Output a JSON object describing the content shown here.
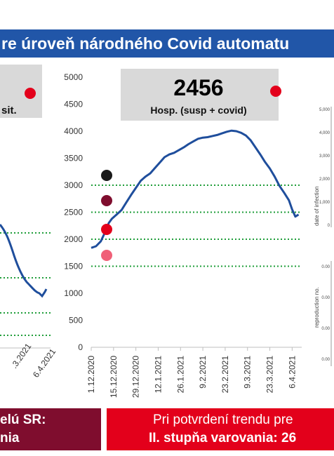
{
  "banner": {
    "title": "re úroveň národného Covid automatu"
  },
  "left_panel": {
    "label": "sit.",
    "status_color": "#e3001b"
  },
  "chart_data": {
    "type": "line",
    "title": "",
    "xlabel": "",
    "ylabel": "",
    "ylim": [
      0,
      5000
    ],
    "y_ticks": [
      0,
      500,
      1000,
      1500,
      2000,
      2500,
      3000,
      3500,
      4000,
      4500,
      5000
    ],
    "x_ticks": [
      "1.12.2020",
      "15.12.2020",
      "29.12.2020",
      "12.1.2021",
      "26.1.2021",
      "9.2.2021",
      "23.2.2021",
      "9.3.2021",
      "23.3.2021",
      "6.4.2021"
    ],
    "x_tick_days": [
      0,
      14,
      28,
      42,
      56,
      70,
      84,
      98,
      112,
      126
    ],
    "thresholds": [
      1500,
      2000,
      2500,
      3000
    ],
    "series_color": "#1f4e9c",
    "threshold_color": "#1f9e3a",
    "callout": {
      "value": "2456",
      "label": "Hosp. (susp + covid)"
    },
    "status_color": "#e3001b",
    "legend_dots": [
      {
        "color": "#1a1a1a"
      },
      {
        "color": "#7f0d2e"
      },
      {
        "color": "#e3001b"
      },
      {
        "color": "#f06078"
      }
    ],
    "series": [
      {
        "x_days": [
          0,
          3,
          6,
          9,
          11,
          13,
          16,
          19,
          22,
          25,
          28,
          31,
          34,
          37,
          40,
          43,
          46,
          49,
          52,
          55,
          58,
          61,
          64,
          67,
          70,
          73,
          76,
          79,
          82,
          85,
          88,
          91,
          94,
          97,
          100,
          103,
          106,
          109,
          112,
          115,
          118,
          121,
          124,
          126,
          128,
          130
        ],
        "values": [
          1840,
          1870,
          1960,
          2150,
          2300,
          2380,
          2460,
          2540,
          2680,
          2820,
          2950,
          3080,
          3160,
          3220,
          3320,
          3420,
          3520,
          3570,
          3600,
          3650,
          3700,
          3760,
          3810,
          3860,
          3880,
          3890,
          3910,
          3930,
          3960,
          3990,
          4010,
          4000,
          3970,
          3920,
          3830,
          3700,
          3570,
          3430,
          3310,
          3160,
          2990,
          2860,
          2720,
          2550,
          2420,
          2456
        ]
      }
    ]
  },
  "right_strip": {
    "top_ylabel": "date of infection",
    "top_ticks": [
      "5,000",
      "4,000",
      "3,000",
      "2,000",
      "1,000",
      "0"
    ],
    "bottom_ylabel": "reproduction no.",
    "bottom_ticks": [
      "0.00",
      "0.00",
      "0.00",
      "0.00"
    ]
  },
  "partial_chart": {
    "x_ticks": [
      ".3.2021",
      "6.4.2021"
    ]
  },
  "bottom": {
    "left_line1": "elú SR:",
    "left_line2": "nia",
    "right_line1": "Pri potvrdení trendu pre",
    "right_line2": "II. stupňa varovania: 26"
  }
}
